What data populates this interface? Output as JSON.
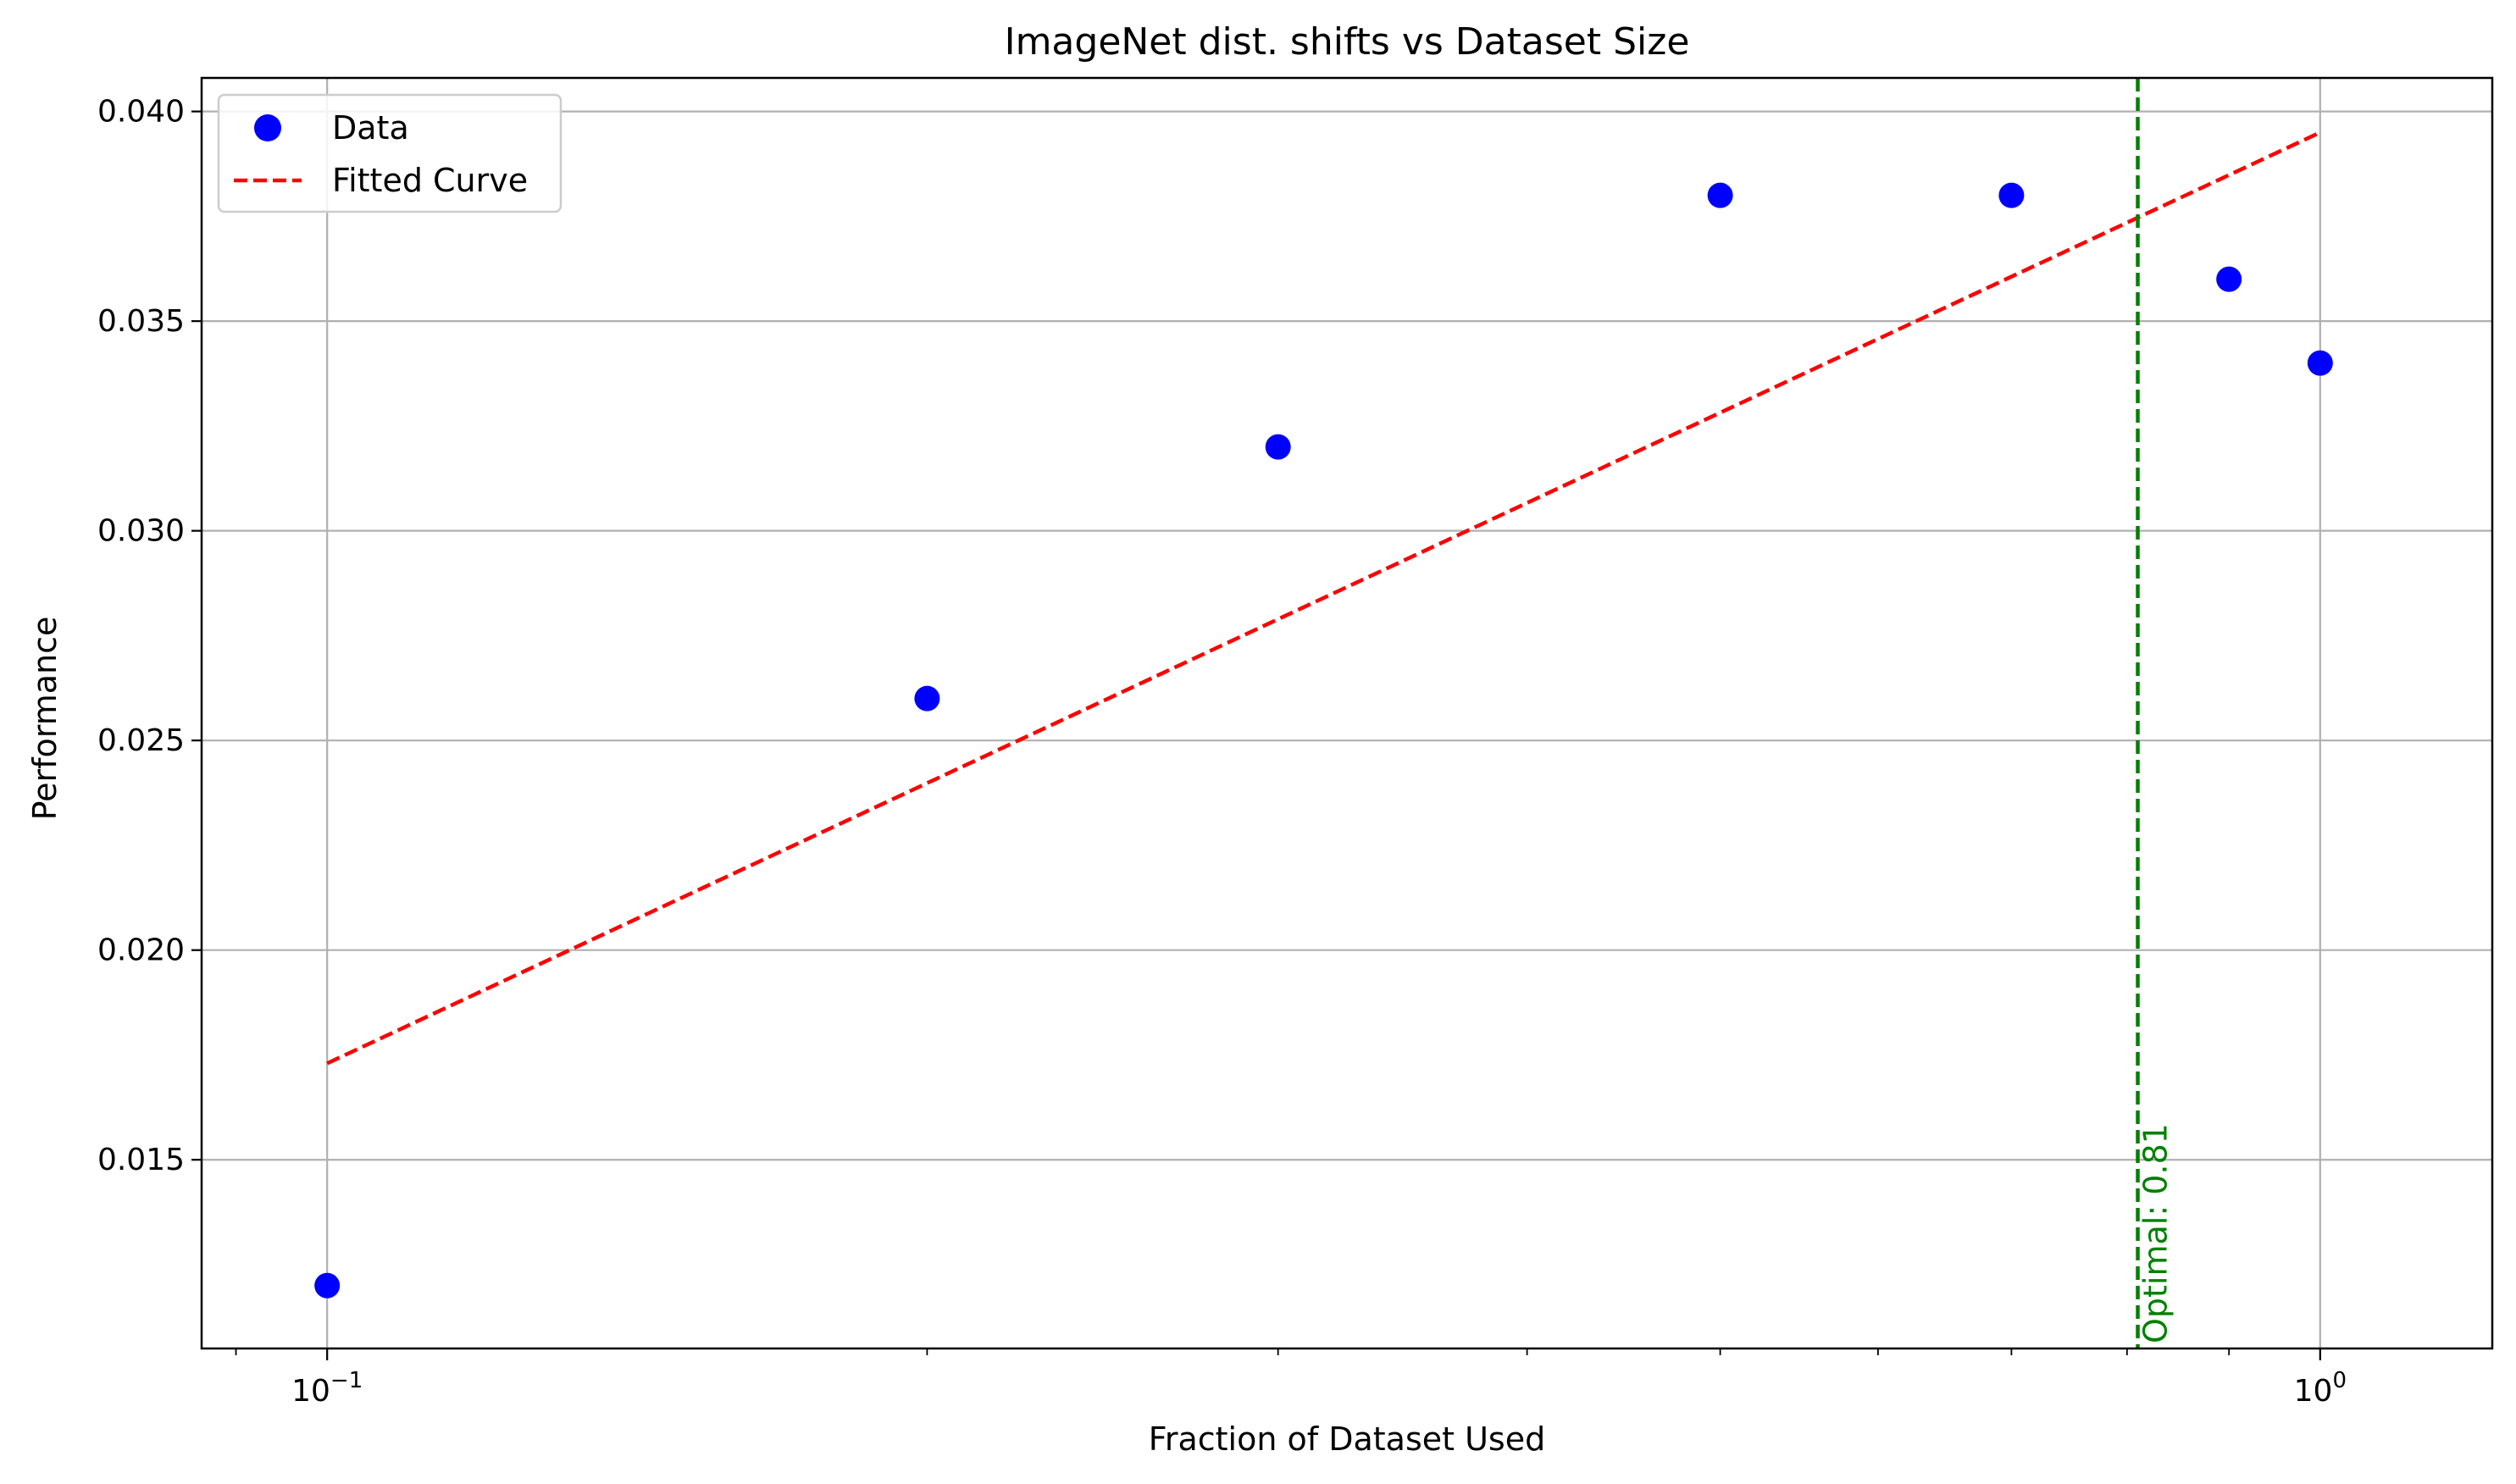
{
  "chart_data": {
    "type": "scatter",
    "title": "ImageNet dist. shifts vs Dataset Size",
    "xlabel": "Fraction of Dataset Used",
    "ylabel": "Performance",
    "xscale": "log",
    "xlim": [
      0.0865,
      1.22
    ],
    "ylim": [
      0.0105,
      0.0408
    ],
    "grid": true,
    "legend_position": "top-left",
    "x_ticks": [
      {
        "value": 0.1,
        "base": "10",
        "exp": "−1"
      },
      {
        "value": 1.0,
        "base": "10",
        "exp": "0"
      }
    ],
    "y_ticks": [
      {
        "value": 0.015,
        "label": "0.015"
      },
      {
        "value": 0.02,
        "label": "0.020"
      },
      {
        "value": 0.025,
        "label": "0.025"
      },
      {
        "value": 0.03,
        "label": "0.030"
      },
      {
        "value": 0.035,
        "label": "0.035"
      },
      {
        "value": 0.04,
        "label": "0.040"
      }
    ],
    "series": [
      {
        "name": "Data",
        "kind": "scatter",
        "color": "#0000ff",
        "x": [
          0.1,
          0.2,
          0.3,
          0.5,
          0.7,
          0.9,
          1.0
        ],
        "y": [
          0.012,
          0.026,
          0.032,
          0.038,
          0.038,
          0.036,
          0.034
        ]
      },
      {
        "name": "Fitted Curve",
        "kind": "line",
        "style": "dashed",
        "color": "#ff0000",
        "x": [
          0.1,
          1.0
        ],
        "y": [
          0.0173,
          0.0395
        ]
      }
    ],
    "annotations": [
      {
        "kind": "vline",
        "x": 0.81,
        "color": "#008000",
        "style": "dashed",
        "label": "Optimal: 0.81"
      }
    ]
  }
}
